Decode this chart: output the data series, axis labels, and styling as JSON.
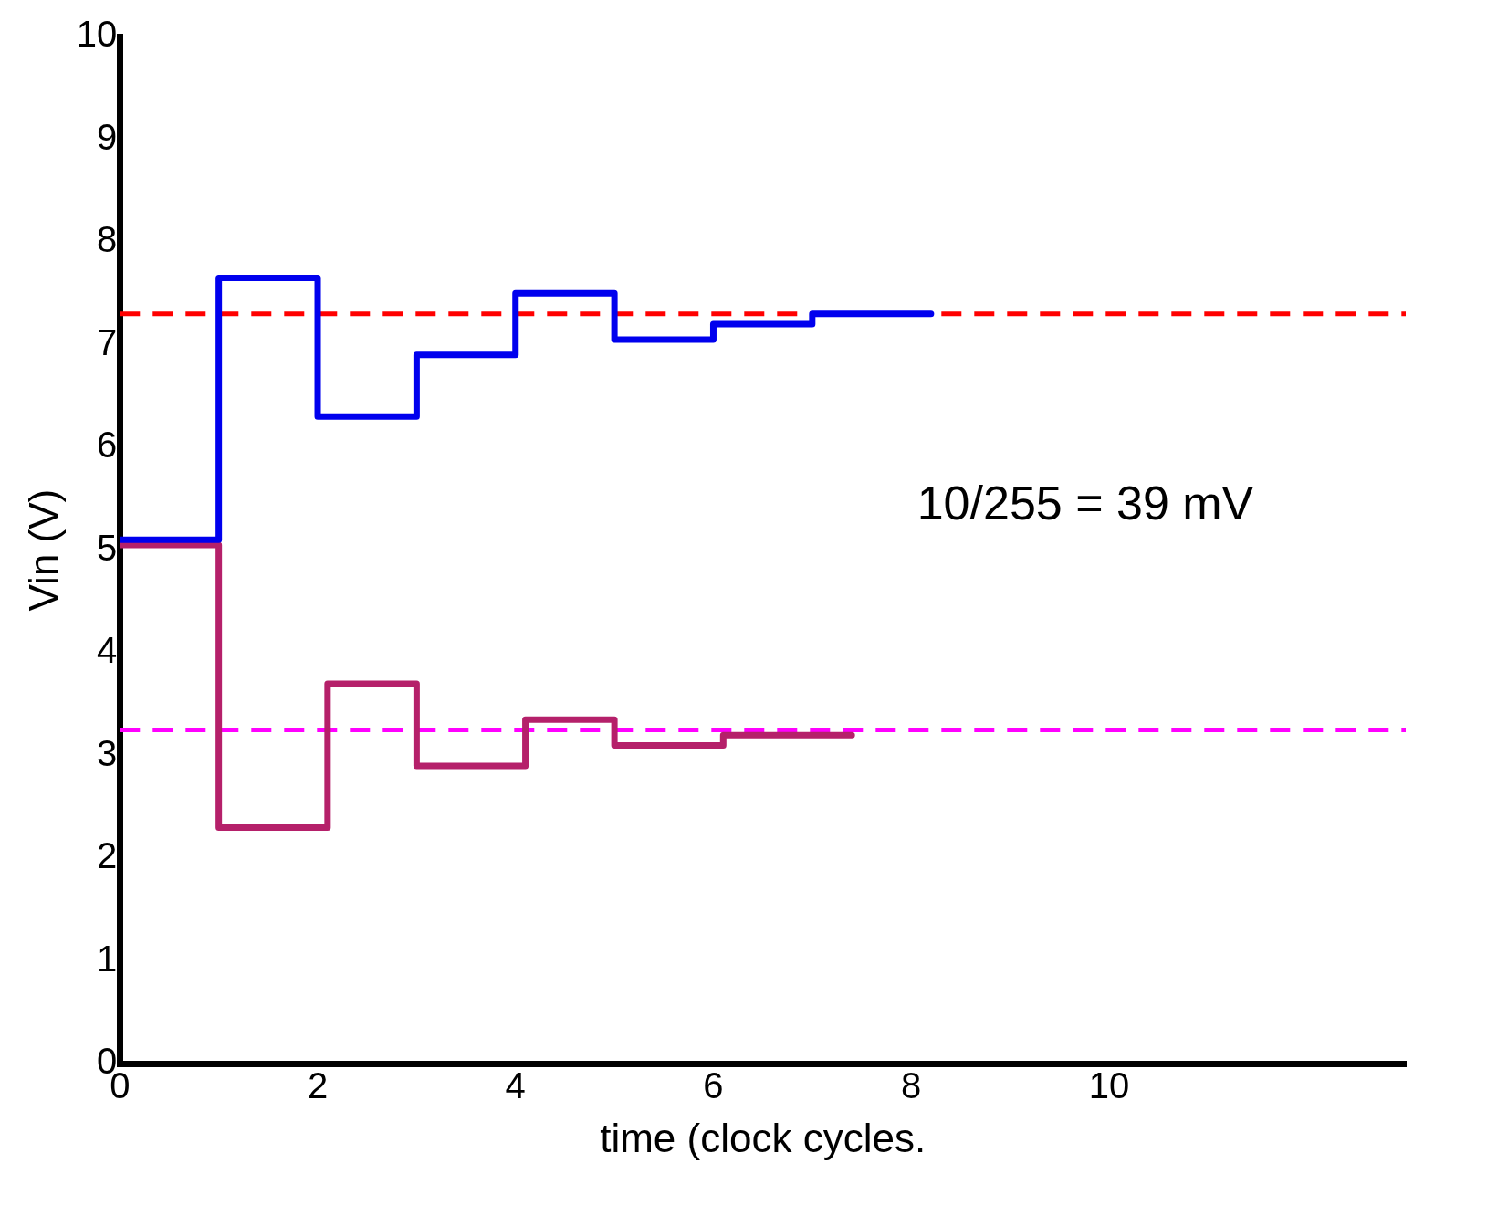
{
  "chart_data": {
    "type": "step",
    "xlabel": "time (clock cycles.",
    "ylabel": "Vin (V)",
    "annotations": [
      "10/255 = 39 mV"
    ],
    "xlim": [
      0,
      13
    ],
    "xticks": [
      0,
      2,
      4,
      6,
      8,
      10
    ],
    "ylim": [
      0,
      10
    ],
    "yticks": [
      0,
      1,
      2,
      3,
      4,
      5,
      6,
      7,
      8,
      9,
      10
    ],
    "grid": false,
    "legend": false,
    "marker": "none",
    "series": [
      {
        "color": "#0000ee",
        "x": [
          0,
          1,
          2,
          3,
          4,
          5,
          6,
          7,
          8.2
        ],
        "values": [
          5.1,
          7.65,
          6.3,
          6.9,
          7.5,
          7.05,
          7.2,
          7.3,
          7.3
        ]
      },
      {
        "color": "#b5206a",
        "x": [
          0,
          1,
          2.1,
          3,
          4.1,
          5,
          6.1,
          7.4
        ],
        "values": [
          5.05,
          2.3,
          3.7,
          2.9,
          3.35,
          3.1,
          3.2,
          3.2
        ]
      }
    ],
    "ref_lines": [
      {
        "axis": "y",
        "value": 7.3,
        "color": "#ff0000",
        "line_style": "dashed"
      },
      {
        "axis": "y",
        "value": 3.25,
        "color": "#ff00ff",
        "line_style": "dashed"
      }
    ]
  }
}
